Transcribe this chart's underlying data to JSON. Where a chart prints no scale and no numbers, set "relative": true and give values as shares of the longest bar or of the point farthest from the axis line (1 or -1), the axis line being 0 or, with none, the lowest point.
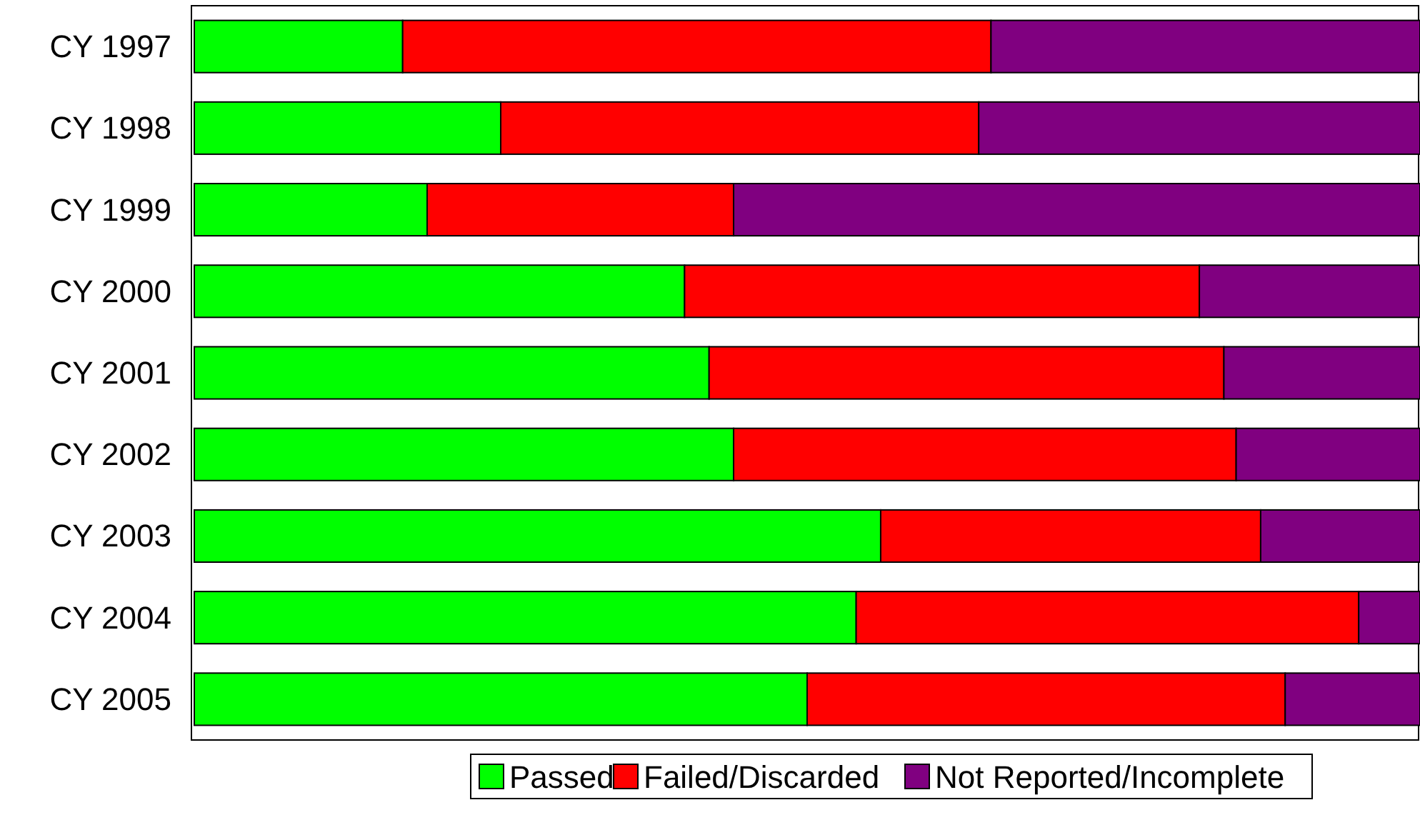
{
  "chart_data": {
    "type": "bar",
    "orientation": "horizontal",
    "stacked": true,
    "relative": true,
    "legend": "bottom",
    "categories": [
      "CY 1997",
      "CY 1998",
      "CY 1999",
      "CY 2000",
      "CY 2001",
      "CY 2002",
      "CY 2003",
      "CY 2004",
      "CY 2005"
    ],
    "series": [
      {
        "name": "Passed",
        "color": "#00ff00",
        "values": [
          0.17,
          0.25,
          0.19,
          0.4,
          0.42,
          0.44,
          0.56,
          0.54,
          0.5
        ]
      },
      {
        "name": "Failed/Discarded",
        "color": "#ff0000",
        "values": [
          0.48,
          0.39,
          0.25,
          0.42,
          0.42,
          0.41,
          0.31,
          0.41,
          0.39
        ]
      },
      {
        "name": "Not Reported/Incomplete",
        "color": "#800080",
        "values": [
          0.35,
          0.36,
          0.56,
          0.18,
          0.16,
          0.15,
          0.13,
          0.05,
          0.11
        ]
      }
    ]
  }
}
